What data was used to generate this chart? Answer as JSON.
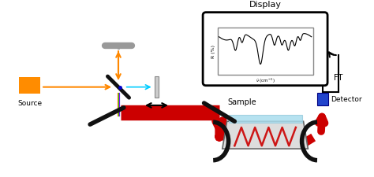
{
  "bg_color": "#ffffff",
  "source_color": "#ff8c00",
  "source_label": "Source",
  "beam_color_orange": "#ff8800",
  "beam_color_cyan": "#00ccff",
  "beam_color_red": "#cc0000",
  "beam_color_rainbow": [
    "#ff0000",
    "#ff8800",
    "#ffff00",
    "#00ff00",
    "#0000ff",
    "#8800ff"
  ],
  "display_label": "Display",
  "sample_label": "Sample",
  "detector_label": "Detector",
  "detector_color": "#2244cc",
  "ft_label": "FT",
  "mirror_color": "#111111",
  "atr_fill": "#dddddd",
  "atr_edge": "#666666",
  "sample_fill": "#aaddee",
  "screen_fill": "#ffffff",
  "screen_edge": "#555555"
}
